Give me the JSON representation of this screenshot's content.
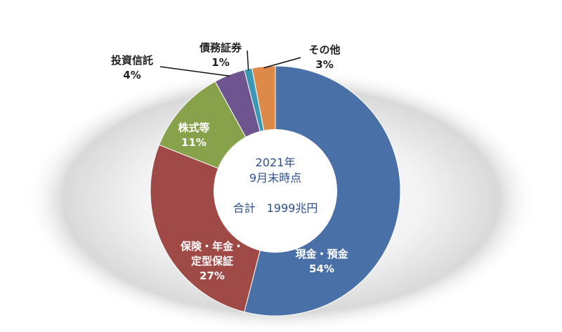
{
  "chart_data": {
    "type": "pie",
    "donut": true,
    "center_text": {
      "line1": "2021年",
      "line2": "9月末時点",
      "line3": "合計　1999兆円"
    },
    "slices": [
      {
        "label": "現金・預金",
        "label_lines": [
          "現金・預金"
        ],
        "value": 54,
        "value_text": "54%",
        "color": "#4a70a8",
        "label_style": "inside-light"
      },
      {
        "label": "保険・年金・定型保証",
        "label_lines": [
          "保険・年金・",
          "定型保証"
        ],
        "value": 27,
        "value_text": "27%",
        "color": "#a04a48",
        "label_style": "inside-light"
      },
      {
        "label": "株式等",
        "label_lines": [
          "株式等"
        ],
        "value": 11,
        "value_text": "11%",
        "color": "#88a24c",
        "label_style": "inside-light"
      },
      {
        "label": "投資信託",
        "label_lines": [
          "投資信託"
        ],
        "value": 4,
        "value_text": "4%",
        "color": "#6e5590",
        "label_style": "outside"
      },
      {
        "label": "債務証券",
        "label_lines": [
          "債務証券"
        ],
        "value": 1,
        "value_text": "1%",
        "color": "#3b98b4",
        "label_style": "outside"
      },
      {
        "label": "その他",
        "label_lines": [
          "その他"
        ],
        "value": 3,
        "value_text": "3%",
        "color": "#dd8a48",
        "label_style": "outside"
      }
    ]
  }
}
